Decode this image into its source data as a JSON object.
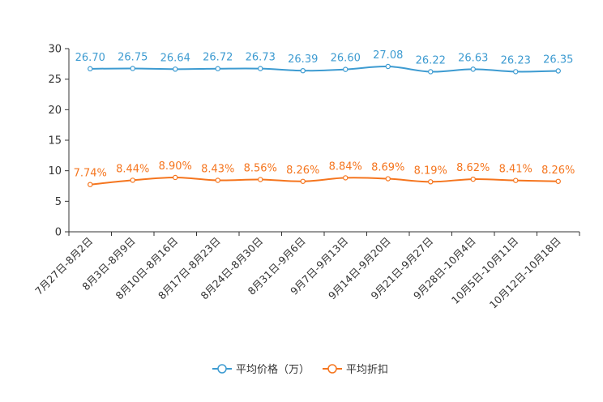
{
  "chart_data": {
    "type": "line",
    "title": "",
    "xlabel": "",
    "ylabel": "",
    "ylim": [
      0,
      30
    ],
    "yticks": [
      0,
      5,
      10,
      15,
      20,
      25,
      30
    ],
    "grid": false,
    "legend_position": "bottom-center",
    "categories": [
      "7月27日-8月2日",
      "8月3日-8月9日",
      "8月10日-8月16日",
      "8月17日-8月23日",
      "8月24日-8月30日",
      "8月31日-9月6日",
      "9月7日-9月13日",
      "9月14日-9月20日",
      "9月21日-9月27日",
      "9月28日-10月4日",
      "10月5日-10月11日",
      "10月12日-10月18日"
    ],
    "series": [
      {
        "name": "平均价格（万）",
        "color": "#3d9bd1",
        "values": [
          26.7,
          26.75,
          26.64,
          26.72,
          26.73,
          26.39,
          26.6,
          27.08,
          26.22,
          26.63,
          26.23,
          26.35
        ],
        "labels": [
          "26.70",
          "26.75",
          "26.64",
          "26.72",
          "26.73",
          "26.39",
          "26.60",
          "27.08",
          "26.22",
          "26.63",
          "26.23",
          "26.35"
        ]
      },
      {
        "name": "平均折扣",
        "color": "#f5751e",
        "values": [
          7.74,
          8.44,
          8.9,
          8.43,
          8.56,
          8.26,
          8.84,
          8.69,
          8.19,
          8.62,
          8.41,
          8.26
        ],
        "labels": [
          "7.74%",
          "8.44%",
          "8.90%",
          "8.43%",
          "8.56%",
          "8.26%",
          "8.84%",
          "8.69%",
          "8.19%",
          "8.62%",
          "8.41%",
          "8.26%"
        ]
      }
    ]
  }
}
